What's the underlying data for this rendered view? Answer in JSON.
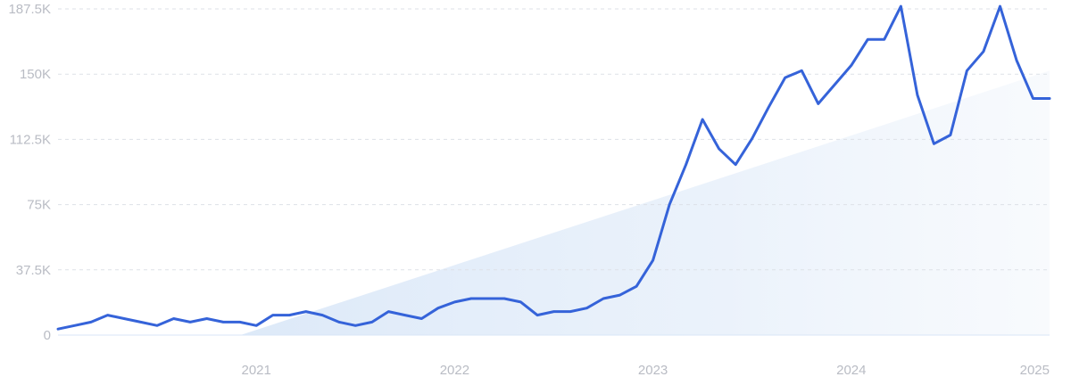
{
  "chart_data": {
    "type": "line",
    "y_ticks": [
      "0",
      "37.5K",
      "75K",
      "112.5K",
      "150K",
      "187.5K"
    ],
    "y_tick_values": [
      0,
      37500,
      75000,
      112500,
      150000,
      187500
    ],
    "ylim": [
      0,
      187500
    ],
    "x_ticks": [
      "2021",
      "2022",
      "2023",
      "2024",
      "2025"
    ],
    "x_tick_values": [
      "2021-01",
      "2022-01",
      "2023-01",
      "2024-01",
      "2025-01"
    ],
    "xlim": [
      "2020-01",
      "2025-01"
    ],
    "grid": true,
    "legend": "none",
    "trend_fill": true,
    "colors": {
      "line": "#3563d9",
      "trend_fill": "#dbe8f8",
      "grid": "#dde1e7",
      "tick_text": "#b9bcc4"
    },
    "series": [
      {
        "x": [
          "2020-01",
          "2020-02",
          "2020-03",
          "2020-04",
          "2020-05",
          "2020-06",
          "2020-07",
          "2020-08",
          "2020-09",
          "2020-10",
          "2020-11",
          "2020-12",
          "2021-01",
          "2021-02",
          "2021-03",
          "2021-04",
          "2021-05",
          "2021-06",
          "2021-07",
          "2021-08",
          "2021-09",
          "2021-10",
          "2021-11",
          "2021-12",
          "2022-01",
          "2022-02",
          "2022-03",
          "2022-04",
          "2022-05",
          "2022-06",
          "2022-07",
          "2022-08",
          "2022-09",
          "2022-10",
          "2022-11",
          "2022-12",
          "2023-01",
          "2023-02",
          "2023-03",
          "2023-04",
          "2023-05",
          "2023-06",
          "2023-07",
          "2023-08",
          "2023-09",
          "2023-10",
          "2023-11",
          "2023-12",
          "2024-01",
          "2024-02",
          "2024-03",
          "2024-04",
          "2024-05",
          "2024-06",
          "2024-07",
          "2024-08",
          "2024-09",
          "2024-10",
          "2024-11",
          "2024-12",
          "2025-01"
        ],
        "y": [
          3500,
          5500,
          7500,
          11500,
          9500,
          7500,
          5500,
          9500,
          7500,
          9500,
          7500,
          7500,
          5500,
          11500,
          11500,
          13500,
          11500,
          7500,
          5500,
          7500,
          13500,
          11500,
          9500,
          15500,
          19000,
          21000,
          21000,
          21000,
          19000,
          11500,
          13500,
          13500,
          15500,
          21000,
          23000,
          28000,
          43000,
          75000,
          98000,
          124000,
          107000,
          98000,
          113000,
          131000,
          148000,
          152000,
          133000,
          144000,
          155000,
          170000,
          170000,
          189000,
          138000,
          110000,
          115000,
          152000,
          163000,
          189000,
          158000,
          136000,
          136000
        ]
      }
    ]
  }
}
